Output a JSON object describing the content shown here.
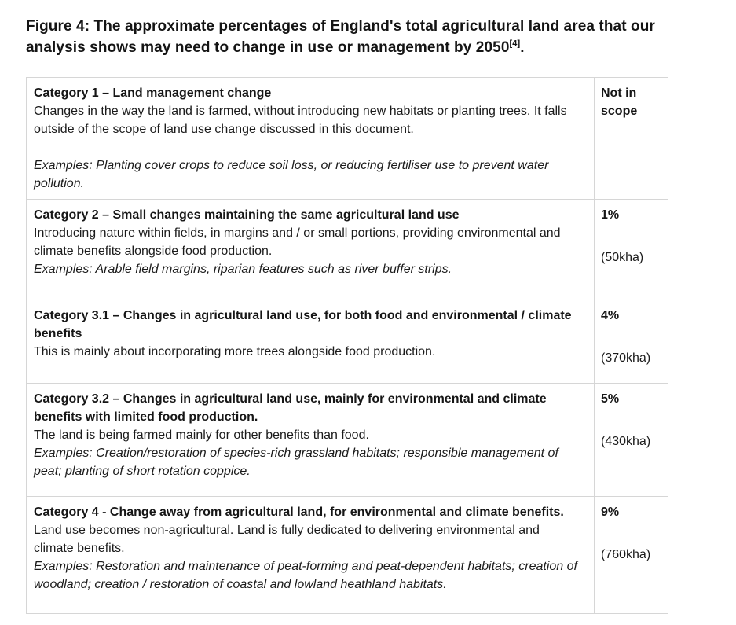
{
  "figure": {
    "title_line1": "Figure 4: The approximate percentages of England's total agricultural land area that our",
    "title_line2": "analysis shows may need to change in use or management by 2050",
    "footnote_marker": "[4]",
    "title_period": "."
  },
  "table": {
    "rows": [
      {
        "title": "Category 1 – Land management change",
        "description": "Changes in the way the land is farmed, without introducing new habitats or planting trees. It falls outside of the scope of land use change discussed in this document.",
        "examples": "Examples: Planting cover crops to reduce soil loss, or reducing fertiliser use to prevent water pollution.",
        "value": "Not in scope",
        "area": ""
      },
      {
        "title": "Category 2 – Small changes maintaining the same agricultural land use",
        "description": "Introducing nature within fields, in margins and / or small portions, providing environmental and climate benefits alongside food production.",
        "examples": "Examples: Arable field margins, riparian features such as river buffer strips.",
        "value": "1%",
        "area": "(50kha)"
      },
      {
        "title": "Category 3.1 – Changes in agricultural land use, for both food and environmental / climate benefits",
        "description": "This is mainly about incorporating more trees alongside food production.",
        "examples": "",
        "value": "4%",
        "area": "(370kha)"
      },
      {
        "title": "Category 3.2 – Changes in agricultural land use, mainly for environmental and climate benefits with limited food production.",
        "description": "The land is being farmed mainly for other benefits than food.",
        "examples": "Examples: Creation/restoration of species-rich grassland habitats; responsible management of peat; planting of short rotation coppice.",
        "value": "5%",
        "area": "(430kha)"
      },
      {
        "title": "Category 4 - Change away from agricultural land, for environmental and climate benefits.",
        "description": "Land use becomes non-agricultural. Land is fully dedicated to delivering environmental and climate benefits.",
        "examples": "Examples: Restoration and maintenance of peat-forming and peat-dependent habitats; creation of woodland; creation / restoration of coastal and lowland heathland habitats.",
        "value": "9%",
        "area": "(760kha)"
      }
    ]
  },
  "colors": {
    "text": "#1b1b1b",
    "border": "#d6d6d6",
    "background": "#ffffff"
  }
}
